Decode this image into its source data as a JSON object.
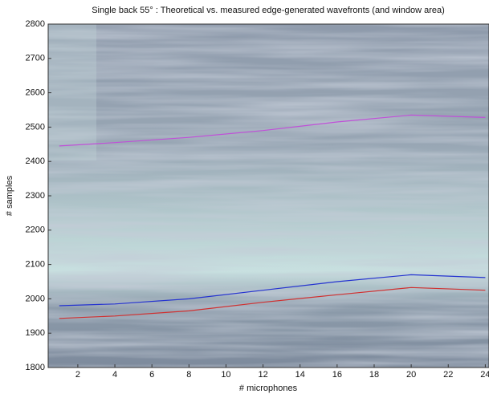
{
  "chart_data": {
    "type": "line",
    "title": "Single back 55° : Theoretical vs. measured edge-generated wavefronts (and window area)",
    "xlabel": "# microphones",
    "ylabel": "# samples",
    "x": [
      1,
      4,
      8,
      12,
      16,
      20,
      24
    ],
    "series": [
      {
        "color": "#c050d8",
        "values": [
          2445,
          2455,
          2470,
          2490,
          2515,
          2535,
          2528
        ]
      },
      {
        "color": "#2533d0",
        "values": [
          1980,
          1985,
          2000,
          2025,
          2050,
          2070,
          2062
        ]
      },
      {
        "color": "#d03030",
        "values": [
          1943,
          1950,
          1965,
          1990,
          2012,
          2033,
          2025
        ]
      }
    ],
    "xlim": [
      0.4,
      24.2
    ],
    "ylim": [
      1800,
      2800
    ],
    "xticks": [
      2,
      4,
      6,
      8,
      10,
      12,
      14,
      16,
      18,
      20,
      22,
      24
    ],
    "yticks": [
      1800,
      1900,
      2000,
      2100,
      2200,
      2300,
      2400,
      2500,
      2600,
      2700,
      2800
    ]
  }
}
